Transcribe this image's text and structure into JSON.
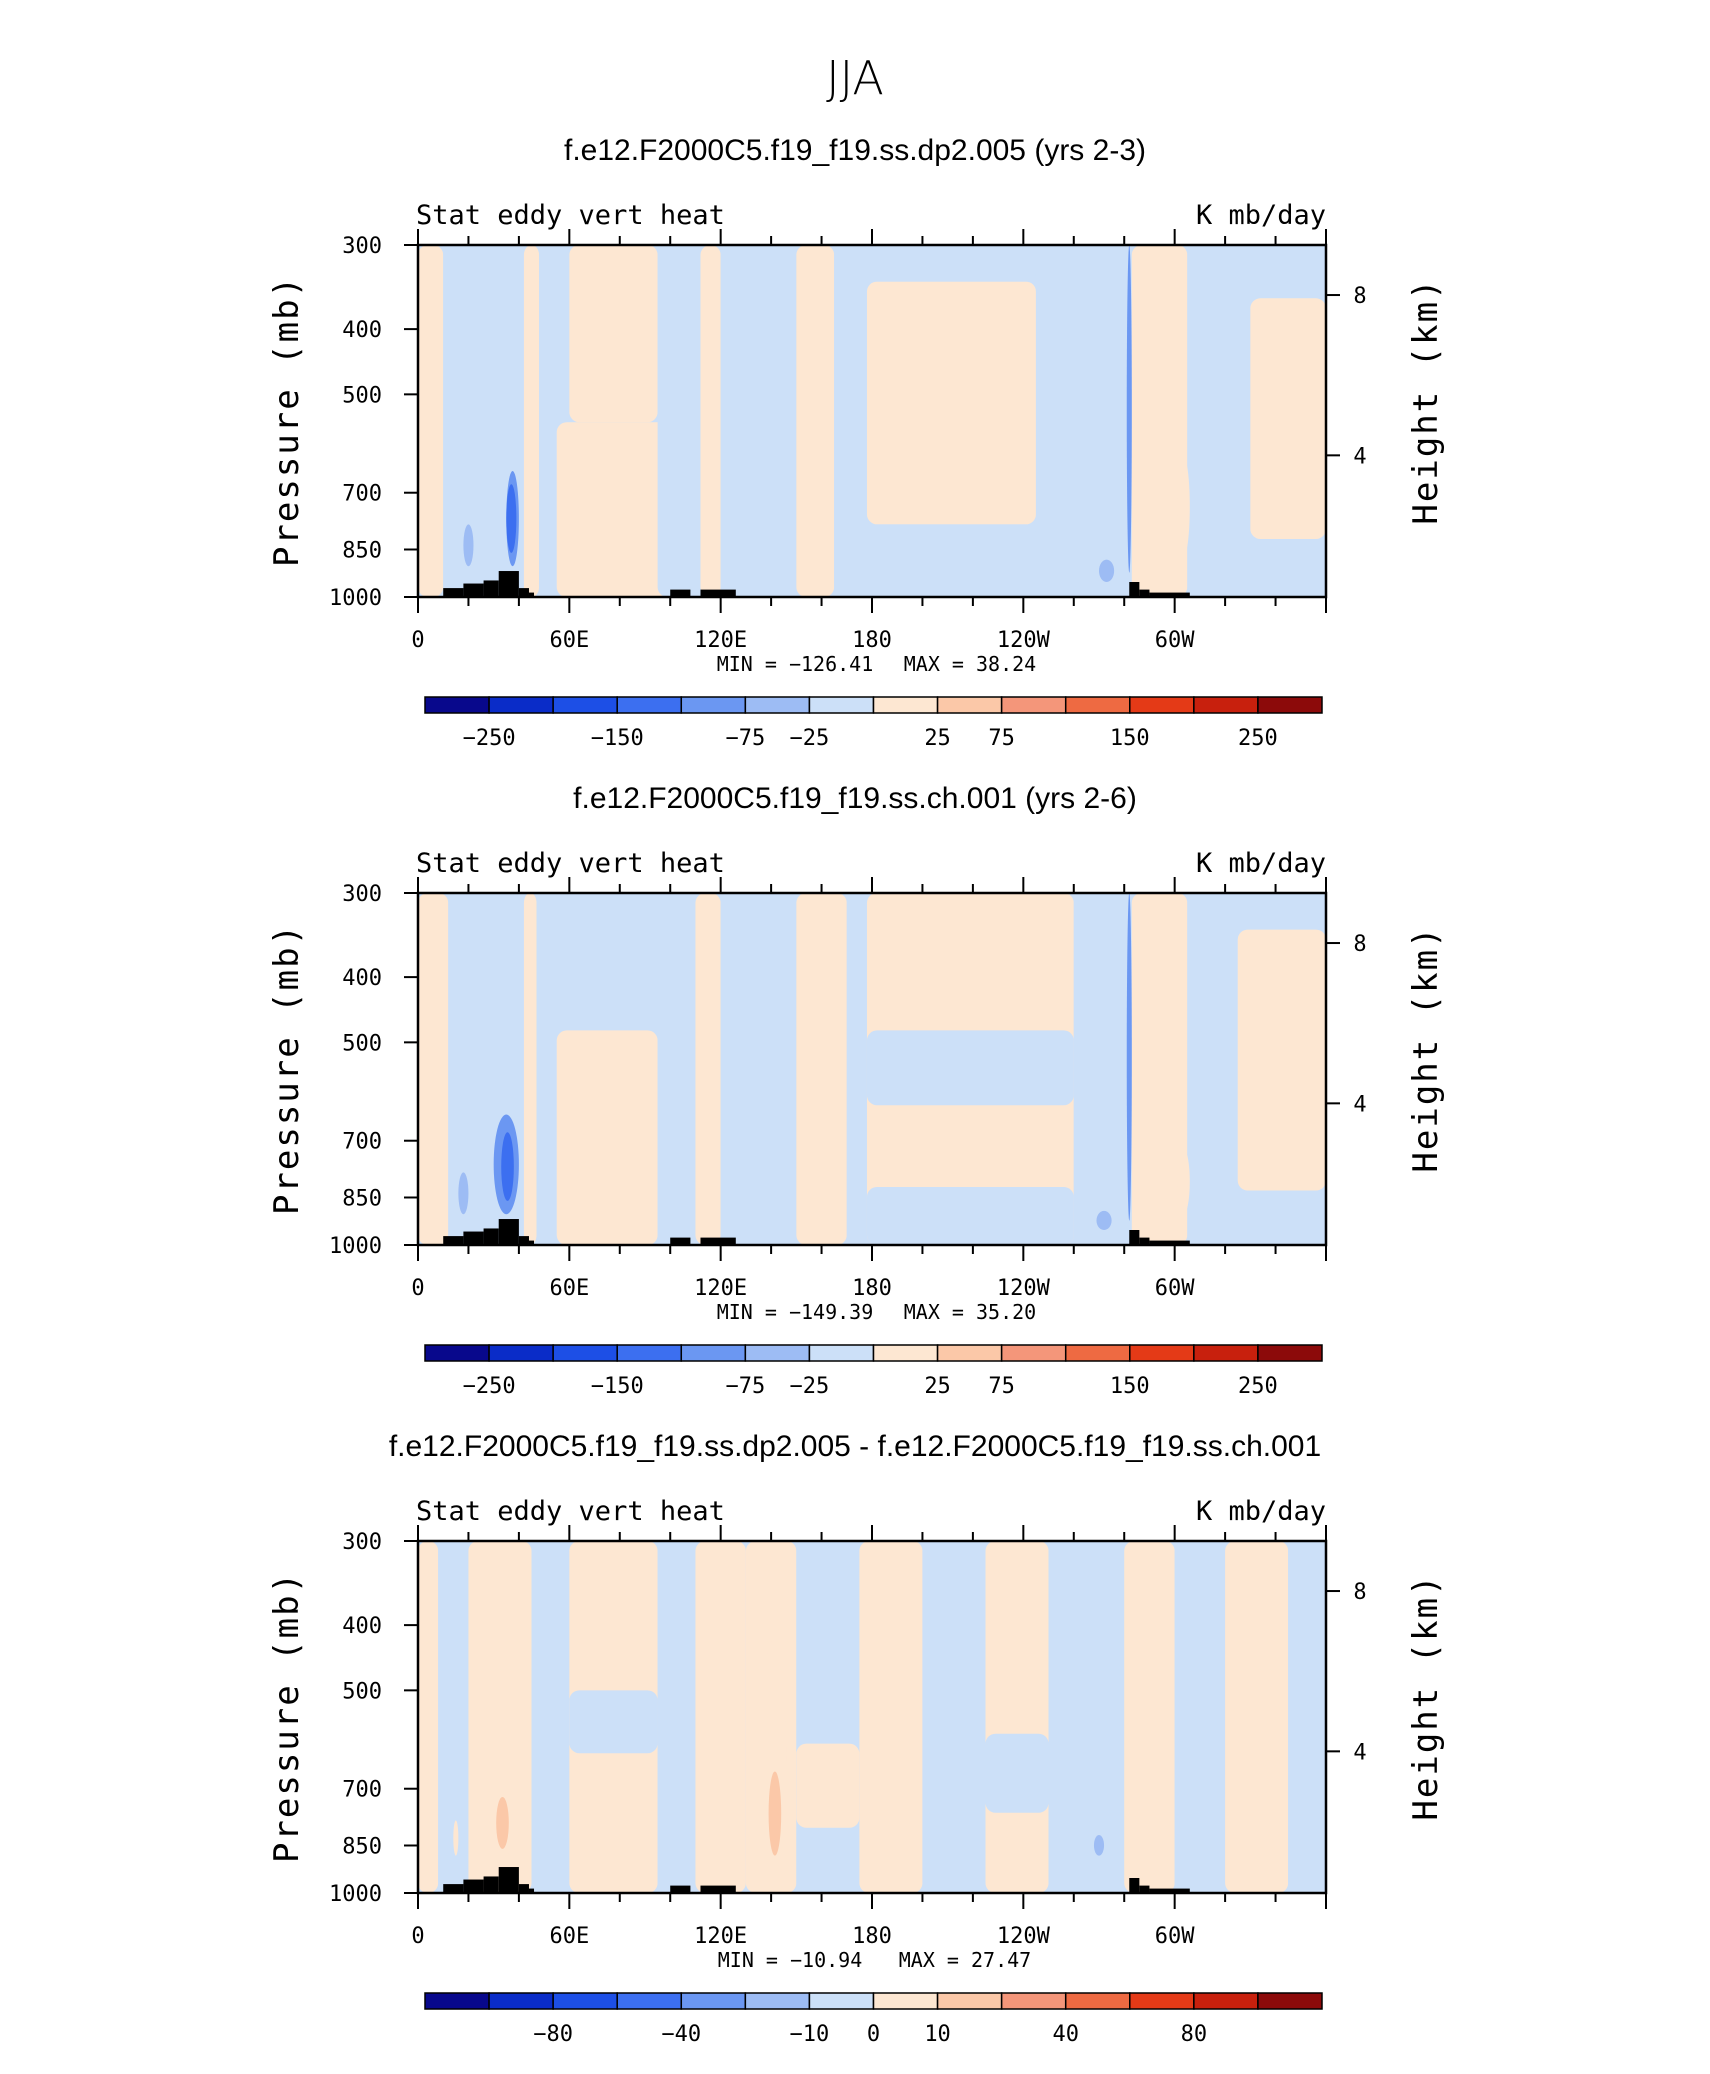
{
  "figure_title": "JJA",
  "colors": {
    "palette": [
      "#08088c",
      "#0a2cc8",
      "#1d4fe6",
      "#3c6ff0",
      "#6b97f2",
      "#9dbcf4",
      "#cce0f8",
      "#fde7d2",
      "#fbc8a8",
      "#f4967a",
      "#ee6a42",
      "#e43a17",
      "#c8200d",
      "#8c0a0a"
    ],
    "land": "#000000",
    "frame": "#000000"
  },
  "chart_data": [
    {
      "type": "heatmap",
      "title": "f.e12.F2000C5.f19_f19.ss.dp2.005 (yrs 2-3)",
      "left_label": "Stat eddy vert heat",
      "right_label": "K mb/day",
      "xlabel": "",
      "ylabel": "Pressure (mb)",
      "ylabel_right": "Height (km)",
      "x_tick_labels": [
        "0",
        "60E",
        "120E",
        "180",
        "120W",
        "60W"
      ],
      "y_tick_labels": [
        "300",
        "400",
        "500",
        "700",
        "850",
        "1000"
      ],
      "y_ticks": [
        300,
        400,
        500,
        700,
        850,
        1000
      ],
      "height_tick_labels": [
        "8",
        "4"
      ],
      "ylim": [
        1000,
        300
      ],
      "y_scale": "log",
      "min_text": "MIN = −126.41",
      "max_text": "MAX =  38.24",
      "colorbar_labels": [
        "−250",
        "−150",
        "−75",
        "−25",
        "25",
        "75",
        "150",
        "250"
      ],
      "features": [
        {
          "lon": [
            35,
            40
          ],
          "p": [
            650,
            900
          ],
          "level": -3
        },
        {
          "lon": [
            35,
            39
          ],
          "p": [
            680,
            860
          ],
          "level": -4
        },
        {
          "lon": [
            18,
            22
          ],
          "p": [
            780,
            900
          ],
          "level": -2
        },
        {
          "lon": [
            281,
            283
          ],
          "p": [
            300,
            920
          ],
          "level": -3
        },
        {
          "lon": [
            301,
            306
          ],
          "p": [
            620,
            870
          ],
          "level": 1
        },
        {
          "lon": [
            288,
            293
          ],
          "p": [
            740,
            900
          ],
          "level": 1
        },
        {
          "lon": [
            270,
            276
          ],
          "p": [
            880,
            950
          ],
          "level": -2
        }
      ]
    },
    {
      "type": "heatmap",
      "title": "f.e12.F2000C5.f19_f19.ss.ch.001 (yrs 2-6)",
      "left_label": "Stat eddy vert heat",
      "right_label": "K mb/day",
      "xlabel": "",
      "ylabel": "Pressure (mb)",
      "ylabel_right": "Height (km)",
      "x_tick_labels": [
        "0",
        "60E",
        "120E",
        "180",
        "120W",
        "60W"
      ],
      "y_tick_labels": [
        "300",
        "400",
        "500",
        "700",
        "850",
        "1000"
      ],
      "y_ticks": [
        300,
        400,
        500,
        700,
        850,
        1000
      ],
      "height_tick_labels": [
        "8",
        "4"
      ],
      "ylim": [
        1000,
        300
      ],
      "y_scale": "log",
      "min_text": "MIN = −149.39",
      "max_text": "MAX =  35.20",
      "colorbar_labels": [
        "−250",
        "−150",
        "−75",
        "−25",
        "25",
        "75",
        "150",
        "250"
      ],
      "features": [
        {
          "lon": [
            30,
            40
          ],
          "p": [
            640,
            900
          ],
          "level": -3
        },
        {
          "lon": [
            33,
            38
          ],
          "p": [
            680,
            860
          ],
          "level": -4
        },
        {
          "lon": [
            16,
            20
          ],
          "p": [
            780,
            900
          ],
          "level": -2
        },
        {
          "lon": [
            281,
            283
          ],
          "p": [
            300,
            920
          ],
          "level": -3
        },
        {
          "lon": [
            301,
            306
          ],
          "p": [
            720,
            900
          ],
          "level": 1
        },
        {
          "lon": [
            288,
            292
          ],
          "p": [
            740,
            900
          ],
          "level": 1
        },
        {
          "lon": [
            269,
            275
          ],
          "p": [
            890,
            950
          ],
          "level": -2
        }
      ]
    },
    {
      "type": "heatmap",
      "title": "f.e12.F2000C5.f19_f19.ss.dp2.005 - f.e12.F2000C5.f19_f19.ss.ch.001",
      "left_label": "Stat eddy vert heat",
      "right_label": "K mb/day",
      "xlabel": "",
      "ylabel": "Pressure (mb)",
      "ylabel_right": "Height (km)",
      "x_tick_labels": [
        "0",
        "60E",
        "120E",
        "180",
        "120W",
        "60W"
      ],
      "y_tick_labels": [
        "300",
        "400",
        "500",
        "700",
        "850",
        "1000"
      ],
      "y_ticks": [
        300,
        400,
        500,
        700,
        850,
        1000
      ],
      "height_tick_labels": [
        "8",
        "4"
      ],
      "ylim": [
        1000,
        300
      ],
      "y_scale": "log",
      "min_text": "MIN = −10.94",
      "max_text": "MAX =  27.47",
      "colorbar_labels": [
        "−80",
        "−40",
        "−10",
        "0",
        "10",
        "40",
        "80"
      ],
      "features": [
        {
          "lon": [
            28,
            38
          ],
          "p": [
            660,
            900
          ],
          "level": 1
        },
        {
          "lon": [
            31,
            36
          ],
          "p": [
            720,
            860
          ],
          "level": 2
        },
        {
          "lon": [
            136,
            146
          ],
          "p": [
            420,
            920
          ],
          "level": 1
        },
        {
          "lon": [
            139,
            144
          ],
          "p": [
            660,
            880
          ],
          "level": 2
        },
        {
          "lon": [
            293,
            299
          ],
          "p": [
            560,
            760
          ],
          "level": 1
        },
        {
          "lon": [
            14,
            16
          ],
          "p": [
            780,
            880
          ],
          "level": 1
        },
        {
          "lon": [
            268,
            272
          ],
          "p": [
            820,
            880
          ],
          "level": -2
        }
      ]
    }
  ]
}
